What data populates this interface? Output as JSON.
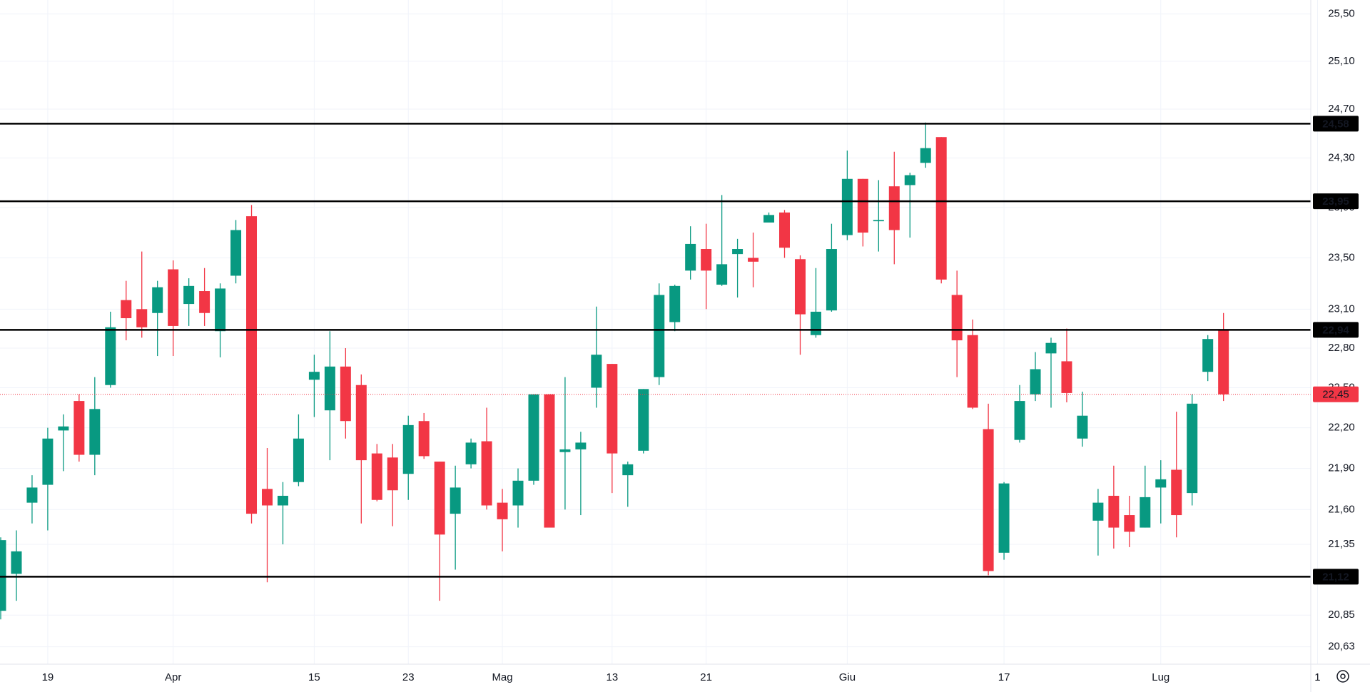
{
  "chart_data": {
    "type": "candlestick",
    "log_scale": true,
    "grid": true,
    "up_color": "#089981",
    "down_color": "#f23645",
    "level_color": "#000000",
    "categories": [
      null,
      null,
      null,
      "19",
      null,
      null,
      null,
      null,
      null,
      null,
      null,
      "Apr",
      null,
      null,
      null,
      null,
      null,
      null,
      null,
      null,
      "15",
      null,
      null,
      null,
      null,
      null,
      "23",
      null,
      null,
      null,
      null,
      null,
      "Mag",
      null,
      null,
      null,
      null,
      null,
      null,
      "13",
      null,
      null,
      null,
      null,
      null,
      "21",
      null,
      null,
      null,
      null,
      null,
      null,
      null,
      null,
      "Giu",
      null,
      null,
      null,
      null,
      null,
      null,
      null,
      null,
      null,
      "17",
      null,
      null,
      null,
      null,
      null,
      null,
      null,
      null,
      null,
      "Lug",
      null,
      null,
      null,
      null,
      null,
      null,
      null,
      null,
      null,
      "1"
    ],
    "open": [
      20.88,
      21.14,
      21.65,
      21.78,
      22.18,
      22.4,
      22.0,
      22.52,
      23.17,
      23.1,
      23.07,
      23.41,
      23.14,
      23.24,
      22.93,
      23.36,
      23.83,
      21.75,
      21.63,
      21.8,
      22.56,
      22.33,
      22.66,
      22.52,
      22.01,
      21.98,
      21.86,
      22.25,
      21.95,
      21.57,
      21.93,
      22.1,
      21.65,
      21.63,
      21.81,
      22.45,
      22.02,
      22.04,
      22.5,
      22.68,
      21.85,
      22.03,
      22.58,
      23.0,
      23.4,
      23.57,
      23.29,
      23.53,
      23.5,
      23.78,
      23.86,
      23.49,
      22.9,
      23.09,
      23.68,
      24.13,
      23.79,
      24.07,
      24.08,
      24.26,
      24.47,
      23.21,
      22.9,
      22.19,
      21.29,
      22.11,
      22.45,
      22.76,
      22.7,
      22.12,
      21.52,
      21.7,
      21.56,
      21.47,
      21.76,
      21.89,
      21.72,
      22.62,
      22.94,
      null,
      null,
      null,
      null,
      null,
      null
    ],
    "high": [
      21.4,
      21.45,
      21.85,
      22.2,
      22.3,
      22.45,
      22.58,
      23.08,
      23.32,
      23.55,
      23.32,
      23.48,
      23.34,
      23.42,
      23.3,
      23.8,
      23.92,
      22.05,
      21.8,
      22.3,
      22.75,
      22.93,
      22.8,
      22.6,
      22.08,
      22.08,
      22.29,
      22.31,
      21.95,
      21.92,
      22.12,
      22.35,
      21.75,
      21.9,
      22.45,
      22.45,
      22.58,
      22.17,
      23.12,
      22.68,
      21.95,
      22.49,
      23.3,
      23.29,
      23.75,
      23.77,
      24.0,
      23.65,
      23.7,
      23.86,
      23.88,
      23.52,
      23.42,
      23.77,
      24.36,
      24.13,
      24.12,
      24.35,
      24.18,
      24.59,
      24.47,
      23.4,
      23.02,
      22.38,
      21.8,
      22.52,
      22.77,
      22.88,
      22.95,
      22.47,
      21.75,
      21.92,
      21.7,
      21.92,
      21.96,
      22.32,
      22.45,
      22.9,
      23.07,
      null,
      null,
      null,
      null,
      null,
      null
    ],
    "low": [
      20.82,
      20.95,
      21.5,
      21.45,
      21.88,
      21.95,
      21.85,
      22.5,
      22.86,
      22.88,
      22.74,
      22.74,
      22.97,
      22.97,
      22.73,
      23.3,
      21.5,
      21.08,
      21.35,
      21.77,
      22.28,
      21.96,
      22.12,
      21.5,
      21.66,
      21.48,
      21.67,
      21.97,
      20.95,
      21.17,
      21.9,
      21.6,
      21.3,
      21.47,
      21.78,
      21.47,
      21.6,
      21.56,
      22.35,
      21.72,
      21.62,
      22.01,
      22.52,
      22.93,
      23.33,
      23.1,
      23.28,
      23.19,
      23.27,
      23.79,
      23.5,
      22.75,
      22.88,
      23.08,
      23.64,
      23.59,
      23.55,
      23.45,
      23.66,
      24.22,
      23.3,
      22.58,
      22.34,
      21.13,
      21.24,
      22.09,
      22.4,
      22.35,
      22.39,
      22.06,
      21.27,
      21.32,
      21.33,
      21.47,
      21.5,
      21.4,
      21.63,
      22.55,
      22.4,
      null,
      null,
      null,
      null,
      null,
      null
    ],
    "close": [
      21.38,
      21.3,
      21.76,
      22.12,
      22.21,
      22.0,
      22.34,
      22.96,
      23.03,
      22.96,
      23.27,
      22.97,
      23.28,
      23.07,
      23.26,
      23.72,
      21.57,
      21.63,
      21.7,
      22.12,
      22.62,
      22.66,
      22.25,
      21.96,
      21.67,
      21.74,
      22.22,
      21.99,
      21.42,
      21.76,
      22.09,
      21.63,
      21.53,
      21.81,
      22.45,
      21.47,
      22.04,
      22.09,
      22.75,
      22.01,
      21.93,
      22.49,
      23.21,
      23.28,
      23.61,
      23.4,
      23.45,
      23.57,
      23.47,
      23.84,
      23.58,
      23.06,
      23.08,
      23.57,
      24.13,
      23.7,
      23.8,
      23.72,
      24.16,
      24.38,
      23.33,
      22.86,
      22.35,
      21.16,
      21.79,
      22.4,
      22.64,
      22.84,
      22.46,
      22.29,
      21.65,
      21.47,
      21.44,
      21.69,
      21.82,
      21.56,
      22.38,
      22.87,
      22.45,
      null,
      null,
      null,
      null,
      null,
      null
    ],
    "ylim": [
      20.51,
      25.62
    ],
    "yticks": [
      {
        "value": 25.5,
        "label": "25,50"
      },
      {
        "value": 25.1,
        "label": "25,10"
      },
      {
        "value": 24.7,
        "label": "24,70"
      },
      {
        "value": 24.3,
        "label": "24,30"
      },
      {
        "value": 23.9,
        "label": "23,90"
      },
      {
        "value": 23.5,
        "label": "23,50"
      },
      {
        "value": 23.1,
        "label": "23,10"
      },
      {
        "value": 22.8,
        "label": "22,80"
      },
      {
        "value": 22.5,
        "label": "22,50"
      },
      {
        "value": 22.2,
        "label": "22,20"
      },
      {
        "value": 21.9,
        "label": "21,90"
      },
      {
        "value": 21.6,
        "label": "21,60"
      },
      {
        "value": 21.35,
        "label": "21,35"
      },
      {
        "value": 20.85,
        "label": "20,85"
      },
      {
        "value": 20.63,
        "label": "20,63"
      }
    ],
    "levels": [
      {
        "value": 24.58,
        "label": "24,58"
      },
      {
        "value": 23.95,
        "label": "23,95"
      },
      {
        "value": 22.94,
        "label": "22,94"
      },
      {
        "value": 21.12,
        "label": "21,12"
      }
    ],
    "last_price": {
      "value": 22.45,
      "label": "22,45"
    }
  }
}
